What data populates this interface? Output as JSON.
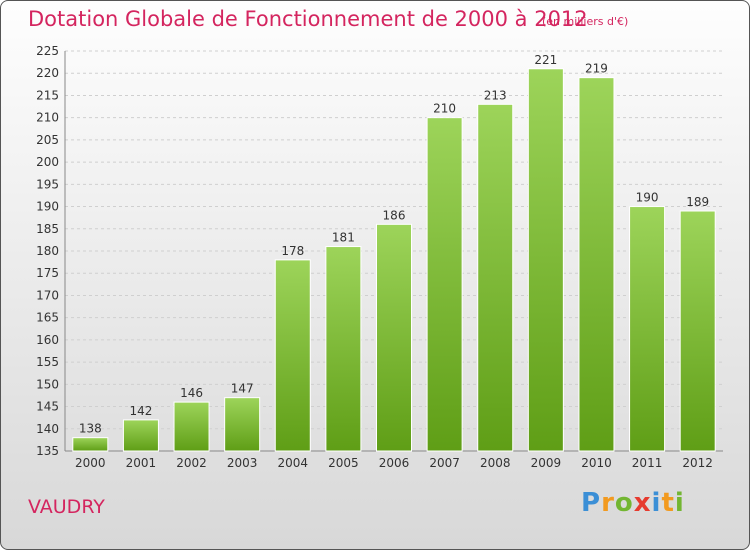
{
  "title": "Dotation Globale de Fonctionnement de 2000 à 2012",
  "subtitle": "(en milliers d'€)",
  "commune": "VAUDRY",
  "logo": {
    "text": "Proxiti"
  },
  "colors": {
    "title": "#d4255f",
    "bar_top": "#9dd45a",
    "bar_bottom": "#5f9e16"
  },
  "chart_data": {
    "type": "bar",
    "title": "Dotation Globale de Fonctionnement de 2000 à 2012",
    "subtitle": "(en milliers d'€)",
    "categories": [
      "2000",
      "2001",
      "2002",
      "2003",
      "2004",
      "2005",
      "2006",
      "2007",
      "2008",
      "2009",
      "2010",
      "2011",
      "2012"
    ],
    "values": [
      138,
      142,
      146,
      147,
      178,
      181,
      186,
      210,
      213,
      221,
      219,
      190,
      189
    ],
    "ylim": [
      135,
      225
    ],
    "yticks": [
      135,
      140,
      145,
      150,
      155,
      160,
      165,
      170,
      175,
      180,
      185,
      190,
      195,
      200,
      205,
      210,
      215,
      220,
      225
    ],
    "grid": true,
    "xlabel": "",
    "ylabel": ""
  }
}
